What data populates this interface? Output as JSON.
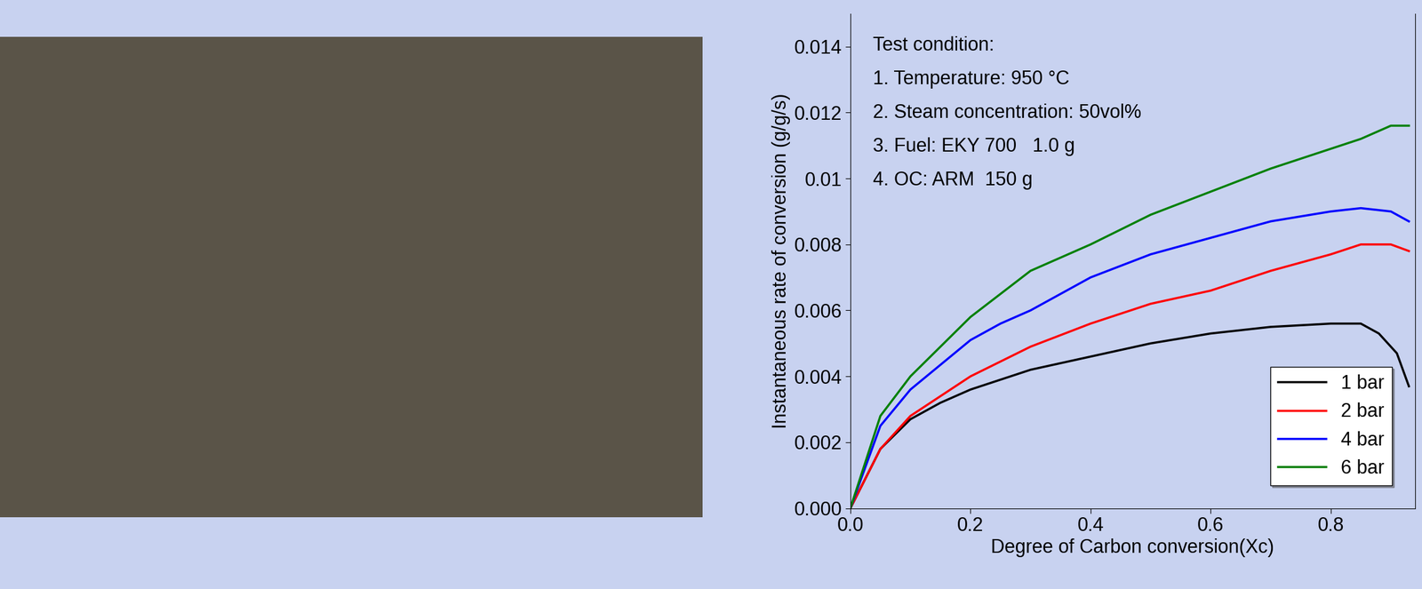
{
  "chart_data": {
    "type": "line",
    "x_label": "Degree of Carbon conversion(Xc)",
    "y_label": "Instantaneous rate of conversion (g/g/s)",
    "annotations": [
      "Test condition:",
      "1. Temperature: 950 °C",
      "2. Steam concentration: 50vol%",
      "3. Fuel: EKY 700   1.0 g",
      "4. OC: ARM  150 g"
    ],
    "xlim": [
      0,
      0.94
    ],
    "ylim": [
      0,
      0.015
    ],
    "xticks": [
      {
        "value": 0,
        "label": "0.0"
      },
      0.2,
      0.4,
      0.6,
      0.8
    ],
    "yticks": [
      {
        "value": 0,
        "label": "0.000"
      },
      0.002,
      0.004,
      0.006,
      0.008,
      0.01,
      0.012,
      0.014
    ],
    "legend": "lower right",
    "series": [
      {
        "name": "1 bar",
        "color": "#000000",
        "x": [
          0,
          0.05,
          0.1,
          0.15,
          0.2,
          0.3,
          0.4,
          0.5,
          0.6,
          0.7,
          0.8,
          0.85,
          0.88,
          0.91,
          0.93
        ],
        "values": [
          0,
          0.0018,
          0.0027,
          0.0032,
          0.0036,
          0.0042,
          0.0046,
          0.005,
          0.0053,
          0.0055,
          0.0056,
          0.0056,
          0.0053,
          0.0047,
          0.0037
        ]
      },
      {
        "name": "2 bar",
        "color": "#ff0000",
        "x": [
          0,
          0.05,
          0.1,
          0.2,
          0.3,
          0.4,
          0.5,
          0.6,
          0.7,
          0.8,
          0.85,
          0.9,
          0.93
        ],
        "values": [
          0,
          0.0018,
          0.0028,
          0.004,
          0.0049,
          0.0056,
          0.0062,
          0.0066,
          0.0072,
          0.0077,
          0.008,
          0.008,
          0.0078
        ]
      },
      {
        "name": "4 bar",
        "color": "#0000ff",
        "x": [
          0,
          0.05,
          0.1,
          0.2,
          0.25,
          0.3,
          0.4,
          0.5,
          0.6,
          0.7,
          0.8,
          0.85,
          0.9,
          0.93
        ],
        "values": [
          0,
          0.0025,
          0.0036,
          0.0051,
          0.0056,
          0.006,
          0.007,
          0.0077,
          0.0082,
          0.0087,
          0.009,
          0.0091,
          0.009,
          0.0087
        ]
      },
      {
        "name": "6 bar",
        "color": "#008000",
        "x": [
          0,
          0.05,
          0.1,
          0.2,
          0.3,
          0.4,
          0.5,
          0.6,
          0.7,
          0.8,
          0.85,
          0.9,
          0.93
        ],
        "values": [
          0,
          0.0028,
          0.004,
          0.0058,
          0.0072,
          0.008,
          0.0089,
          0.0096,
          0.0103,
          0.0109,
          0.0112,
          0.0116,
          0.0116
        ]
      }
    ]
  }
}
